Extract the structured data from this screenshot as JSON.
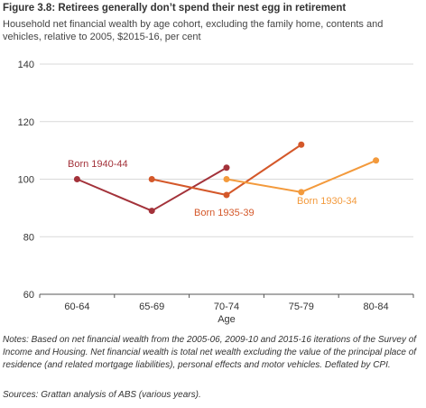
{
  "figure": {
    "title": "Figure 3.8: Retirees generally don’t spend their nest egg in retirement",
    "subtitle": "Household net financial wealth by age cohort, excluding the family home, contents and vehicles, relative to 2005, $2015-16, per cent",
    "notes": "Notes: Based on net financial wealth from the 2005-06, 2009-10 and 2015-16 iterations of the Survey of Income and Housing. Net financial wealth is total net wealth excluding the value of the principal place of residence (and related mortgage liabilities), personal effects and motor vehicles. Deflated by CPI.",
    "sources": "Sources: Grattan analysis of ABS (various years)."
  },
  "chart_data": {
    "type": "line",
    "categories": [
      "60-64",
      "65-69",
      "70-74",
      "75-79",
      "80-84"
    ],
    "xlabel": "Age",
    "ylabel": "",
    "ylim": [
      60,
      140
    ],
    "yticks": [
      60,
      80,
      100,
      120,
      140
    ],
    "grid": "horizontal",
    "series": [
      {
        "name": "Born 1940-44",
        "color": "#A3323A",
        "values": [
          100,
          89,
          104,
          null,
          null
        ]
      },
      {
        "name": "Born 1935-39",
        "color": "#D4582A",
        "values": [
          null,
          100,
          94.5,
          112,
          null
        ]
      },
      {
        "name": "Born 1930-34",
        "color": "#F39A3C",
        "values": [
          null,
          null,
          100,
          95.5,
          106.5
        ]
      }
    ]
  }
}
